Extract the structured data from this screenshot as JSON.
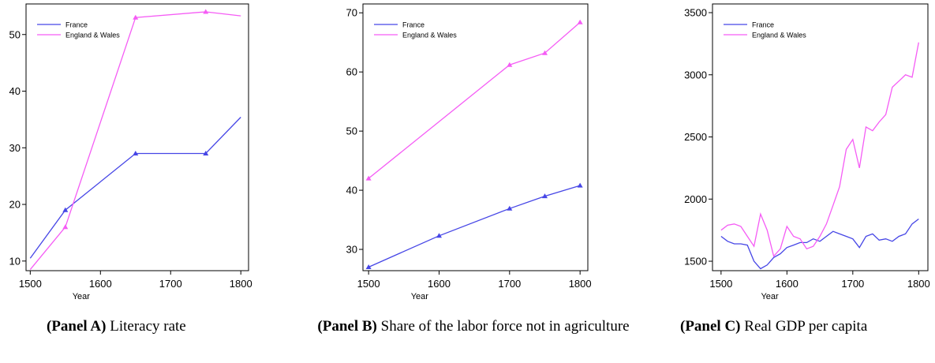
{
  "chart_data": [
    {
      "type": "line",
      "xlabel": "Year",
      "legend": "upper left",
      "caption": {
        "label": "(Panel A)",
        "text": "Literacy rate"
      },
      "xlim": [
        1494,
        1811
      ],
      "ylim": [
        8.3,
        55.4
      ],
      "xticks": [
        1500,
        1600,
        1700,
        1800
      ],
      "yticks": [
        10,
        20,
        30,
        40,
        50
      ],
      "series": [
        {
          "name": "France",
          "color": "#4646e6",
          "x": [
            1500,
            1550,
            1650,
            1750,
            1800
          ],
          "values": [
            10.5,
            19,
            29,
            29,
            35.4
          ],
          "markers": [
            1,
            2,
            3
          ]
        },
        {
          "name": "England & Wales",
          "color": "#f55cf5",
          "x": [
            1500,
            1550,
            1650,
            1750,
            1800
          ],
          "values": [
            8.5,
            16,
            53,
            54,
            53.3
          ],
          "markers": [
            1,
            2,
            3
          ]
        }
      ]
    },
    {
      "type": "line",
      "xlabel": "Year",
      "legend": "upper left",
      "caption": {
        "label": "(Panel B)",
        "text": "Share of the labor force not in agriculture"
      },
      "xlim": [
        1492,
        1811
      ],
      "ylim": [
        26.4,
        71.5
      ],
      "xticks": [
        1500,
        1600,
        1700,
        1800
      ],
      "yticks": [
        30,
        40,
        50,
        60,
        70
      ],
      "series": [
        {
          "name": "France",
          "color": "#4646e6",
          "x": [
            1500,
            1600,
            1700,
            1750,
            1800
          ],
          "values": [
            27,
            32.3,
            36.9,
            39,
            40.8
          ],
          "markers": [
            0,
            1,
            2,
            3,
            4
          ]
        },
        {
          "name": "England & Wales",
          "color": "#f55cf5",
          "x": [
            1500,
            1700,
            1750,
            1800
          ],
          "values": [
            42,
            61.2,
            63.2,
            68.4
          ],
          "markers": [
            0,
            1,
            2,
            3
          ]
        }
      ]
    },
    {
      "type": "line",
      "xlabel": "Year",
      "legend": "upper left",
      "caption": {
        "label": "(Panel C)",
        "text": "Real GDP per capita"
      },
      "xlim": [
        1487,
        1814
      ],
      "ylim": [
        1424,
        3570
      ],
      "xticks": [
        1500,
        1600,
        1700,
        1800
      ],
      "yticks": [
        1500,
        2000,
        2500,
        3000,
        3500
      ],
      "series": [
        {
          "name": "France",
          "color": "#4646e6",
          "x": [
            1500,
            1510,
            1520,
            1530,
            1540,
            1550,
            1560,
            1570,
            1580,
            1590,
            1600,
            1610,
            1620,
            1630,
            1640,
            1650,
            1660,
            1670,
            1680,
            1690,
            1700,
            1710,
            1720,
            1730,
            1740,
            1750,
            1760,
            1770,
            1780,
            1790,
            1800
          ],
          "values": [
            1700,
            1660,
            1640,
            1640,
            1630,
            1500,
            1440,
            1470,
            1530,
            1560,
            1610,
            1630,
            1650,
            1650,
            1680,
            1660,
            1700,
            1740,
            1720,
            1700,
            1680,
            1610,
            1700,
            1720,
            1670,
            1680,
            1660,
            1700,
            1720,
            1800,
            1840
          ]
        },
        {
          "name": "England & Wales",
          "color": "#f55cf5",
          "x": [
            1500,
            1510,
            1520,
            1530,
            1540,
            1550,
            1560,
            1570,
            1580,
            1590,
            1600,
            1610,
            1620,
            1630,
            1640,
            1650,
            1660,
            1670,
            1680,
            1690,
            1700,
            1710,
            1720,
            1730,
            1740,
            1750,
            1760,
            1770,
            1780,
            1790,
            1800
          ],
          "values": [
            1750,
            1790,
            1800,
            1780,
            1700,
            1620,
            1880,
            1750,
            1540,
            1600,
            1780,
            1700,
            1680,
            1600,
            1620,
            1700,
            1800,
            1950,
            2100,
            2400,
            2480,
            2250,
            2580,
            2550,
            2620,
            2680,
            2900,
            2950,
            3000,
            2980,
            3260
          ]
        }
      ]
    }
  ]
}
